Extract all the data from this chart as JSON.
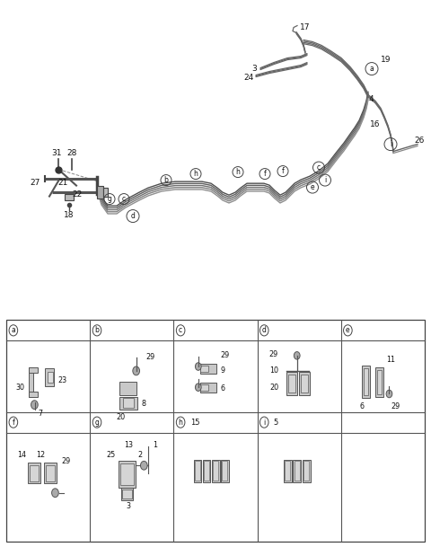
{
  "bg_color": "#ffffff",
  "fig_width": 4.8,
  "fig_height": 6.09,
  "dpi": 100,
  "cells_row1": [
    "a",
    "b",
    "c",
    "d",
    "e"
  ],
  "cells_row2": [
    "f",
    "g",
    "h",
    "i",
    ""
  ],
  "main_line_color": "#777777",
  "label_circle_color": "#444444",
  "number_color": "#111111",
  "table_line_color": "#555555",
  "part_fill": "#c8c8c8",
  "part_edge": "#555555"
}
